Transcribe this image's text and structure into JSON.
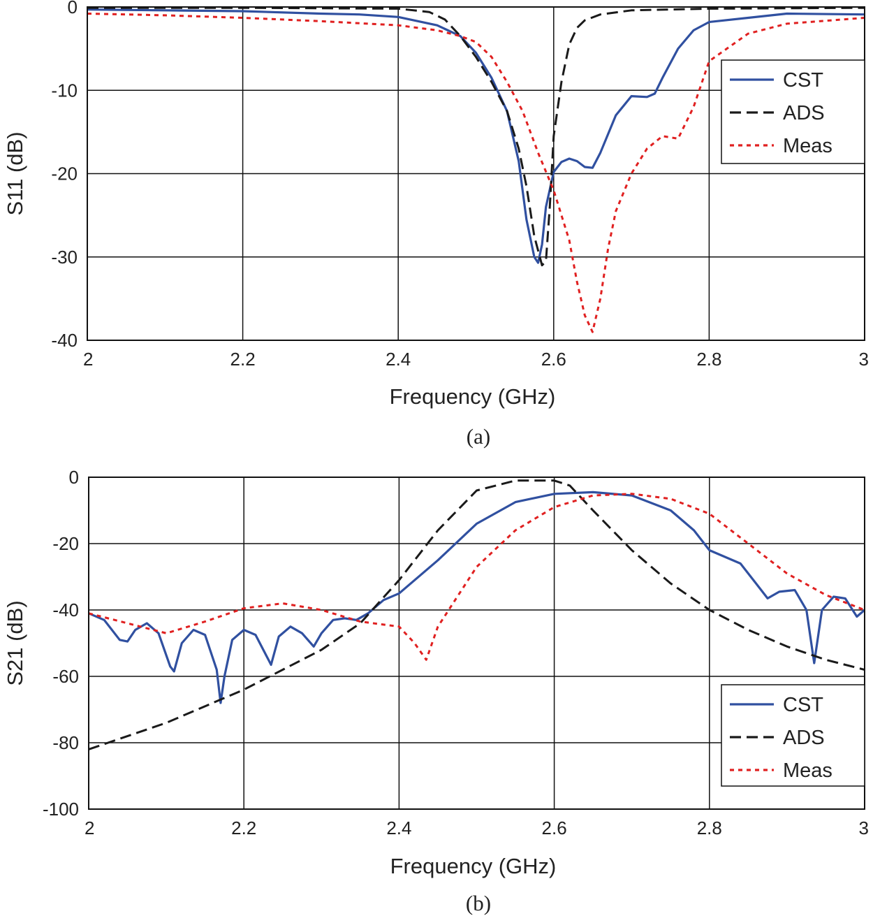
{
  "chart_data": [
    {
      "type": "line",
      "caption": "(a)",
      "xlabel": "Frequency (GHz)",
      "ylabel": "S11 (dB)",
      "xlim": [
        2,
        3
      ],
      "ylim": [
        -40,
        0
      ],
      "xticks": [
        2,
        2.2,
        2.4,
        2.6,
        2.8,
        3
      ],
      "xtick_labels": [
        "2",
        "2.2",
        "2.4",
        "2.6",
        "2.8",
        "3"
      ],
      "yticks": [
        0,
        -10,
        -20,
        -30,
        -40
      ],
      "ytick_labels": [
        "0",
        "-10",
        "-20",
        "-30",
        "-40"
      ],
      "grid": true,
      "legend_position": "right",
      "series": [
        {
          "name": "CST",
          "color": "#3050a0",
          "style": "solid",
          "x": [
            2.0,
            2.1,
            2.2,
            2.3,
            2.35,
            2.4,
            2.45,
            2.48,
            2.5,
            2.52,
            2.54,
            2.555,
            2.565,
            2.575,
            2.58,
            2.585,
            2.59,
            2.6,
            2.61,
            2.62,
            2.63,
            2.64,
            2.65,
            2.66,
            2.68,
            2.7,
            2.72,
            2.73,
            2.74,
            2.76,
            2.78,
            2.8,
            2.85,
            2.9,
            3.0
          ],
          "y": [
            -0.3,
            -0.4,
            -0.5,
            -0.8,
            -0.9,
            -1.2,
            -2.2,
            -3.5,
            -5.5,
            -8.5,
            -12.5,
            -18.5,
            -25.5,
            -30.0,
            -30.7,
            -28.5,
            -24.0,
            -19.8,
            -18.6,
            -18.2,
            -18.5,
            -19.2,
            -19.3,
            -17.5,
            -13.0,
            -10.7,
            -10.8,
            -10.4,
            -8.5,
            -5.0,
            -2.8,
            -1.8,
            -1.3,
            -0.8,
            -0.9
          ]
        },
        {
          "name": "ADS",
          "color": "#1a1a1a",
          "style": "dashed",
          "x": [
            2.0,
            2.2,
            2.4,
            2.44,
            2.46,
            2.48,
            2.5,
            2.52,
            2.54,
            2.555,
            2.565,
            2.575,
            2.585,
            2.59,
            2.595,
            2.6,
            2.61,
            2.62,
            2.63,
            2.64,
            2.66,
            2.7,
            2.8,
            3.0
          ],
          "y": [
            -0.1,
            -0.1,
            -0.2,
            -0.6,
            -1.5,
            -3.5,
            -6.0,
            -9.0,
            -12.5,
            -17.0,
            -21.5,
            -27.5,
            -31.0,
            -30.5,
            -24.0,
            -15.5,
            -9.0,
            -4.5,
            -2.5,
            -1.6,
            -0.9,
            -0.4,
            -0.2,
            -0.1
          ]
        },
        {
          "name": "Meas",
          "color": "#e02020",
          "style": "dotted",
          "x": [
            2.0,
            2.1,
            2.2,
            2.3,
            2.4,
            2.45,
            2.48,
            2.5,
            2.52,
            2.54,
            2.56,
            2.58,
            2.6,
            2.62,
            2.63,
            2.64,
            2.65,
            2.66,
            2.67,
            2.68,
            2.7,
            2.72,
            2.74,
            2.76,
            2.78,
            2.8,
            2.85,
            2.9,
            3.0
          ],
          "y": [
            -0.8,
            -1.0,
            -1.3,
            -1.7,
            -2.2,
            -2.8,
            -3.5,
            -4.2,
            -6.0,
            -9.0,
            -12.5,
            -17.5,
            -22.0,
            -28.0,
            -33.0,
            -37.0,
            -39.0,
            -35.0,
            -29.0,
            -24.5,
            -20.0,
            -17.0,
            -15.5,
            -15.8,
            -12.0,
            -6.5,
            -3.2,
            -2.0,
            -1.3
          ]
        }
      ]
    },
    {
      "type": "line",
      "caption": "(b)",
      "xlabel": "Frequency (GHz)",
      "ylabel": "S21 (dB)",
      "xlim": [
        2,
        3
      ],
      "ylim": [
        -100,
        0
      ],
      "xticks": [
        2,
        2.2,
        2.4,
        2.6,
        2.8,
        3
      ],
      "xtick_labels": [
        "2",
        "2.2",
        "2.4",
        "2.6",
        "2.8",
        "3"
      ],
      "yticks": [
        0,
        -20,
        -40,
        -60,
        -80,
        -100
      ],
      "ytick_labels": [
        "0",
        "-20",
        "-40",
        "-60",
        "-80",
        "-100"
      ],
      "grid": true,
      "legend_position": "bottom-right",
      "series": [
        {
          "name": "CST",
          "color": "#3050a0",
          "style": "solid",
          "x": [
            2.0,
            2.02,
            2.04,
            2.05,
            2.06,
            2.075,
            2.09,
            2.105,
            2.11,
            2.12,
            2.135,
            2.15,
            2.165,
            2.17,
            2.175,
            2.185,
            2.2,
            2.215,
            2.225,
            2.235,
            2.245,
            2.26,
            2.275,
            2.29,
            2.3,
            2.315,
            2.33,
            2.345,
            2.36,
            2.38,
            2.4,
            2.45,
            2.5,
            2.55,
            2.6,
            2.65,
            2.7,
            2.75,
            2.78,
            2.8,
            2.84,
            2.86,
            2.875,
            2.89,
            2.91,
            2.925,
            2.935,
            2.945,
            2.96,
            2.975,
            2.99,
            3.0
          ],
          "y": [
            -41.0,
            -43.0,
            -49.0,
            -49.5,
            -46.0,
            -44.0,
            -47.0,
            -57.0,
            -58.5,
            -50.0,
            -46.0,
            -47.5,
            -58.0,
            -68.0,
            -60.0,
            -49.0,
            -46.0,
            -47.5,
            -52.0,
            -56.5,
            -48.0,
            -45.0,
            -47.0,
            -51.0,
            -47.0,
            -43.0,
            -42.5,
            -43.0,
            -41.0,
            -37.0,
            -35.0,
            -25.0,
            -14.0,
            -7.5,
            -5.0,
            -4.5,
            -5.5,
            -10.0,
            -16.0,
            -22.0,
            -26.0,
            -32.0,
            -36.5,
            -34.5,
            -34.0,
            -40.0,
            -56.0,
            -40.0,
            -36.0,
            -36.5,
            -42.0,
            -40.0
          ]
        },
        {
          "name": "ADS",
          "color": "#1a1a1a",
          "style": "dashed",
          "x": [
            2.0,
            2.1,
            2.2,
            2.3,
            2.35,
            2.4,
            2.45,
            2.5,
            2.55,
            2.6,
            2.62,
            2.65,
            2.7,
            2.75,
            2.8,
            2.85,
            2.9,
            2.95,
            3.0
          ],
          "y": [
            -82.0,
            -74.0,
            -64.0,
            -52.0,
            -44.0,
            -31.0,
            -16.0,
            -4.0,
            -1.0,
            -1.0,
            -2.5,
            -10.0,
            -22.0,
            -32.0,
            -40.0,
            -46.0,
            -51.0,
            -55.0,
            -58.0
          ]
        },
        {
          "name": "Meas",
          "color": "#e02020",
          "style": "dotted",
          "x": [
            2.0,
            2.05,
            2.1,
            2.15,
            2.2,
            2.25,
            2.3,
            2.35,
            2.4,
            2.42,
            2.435,
            2.45,
            2.5,
            2.55,
            2.6,
            2.65,
            2.7,
            2.75,
            2.8,
            2.85,
            2.9,
            2.95,
            3.0
          ],
          "y": [
            -41.0,
            -44.0,
            -47.0,
            -43.5,
            -39.5,
            -38.0,
            -40.0,
            -43.5,
            -45.0,
            -50.0,
            -55.0,
            -45.0,
            -27.0,
            -16.0,
            -9.0,
            -5.5,
            -5.0,
            -6.5,
            -11.0,
            -20.0,
            -29.0,
            -35.5,
            -40.0
          ]
        }
      ]
    }
  ]
}
